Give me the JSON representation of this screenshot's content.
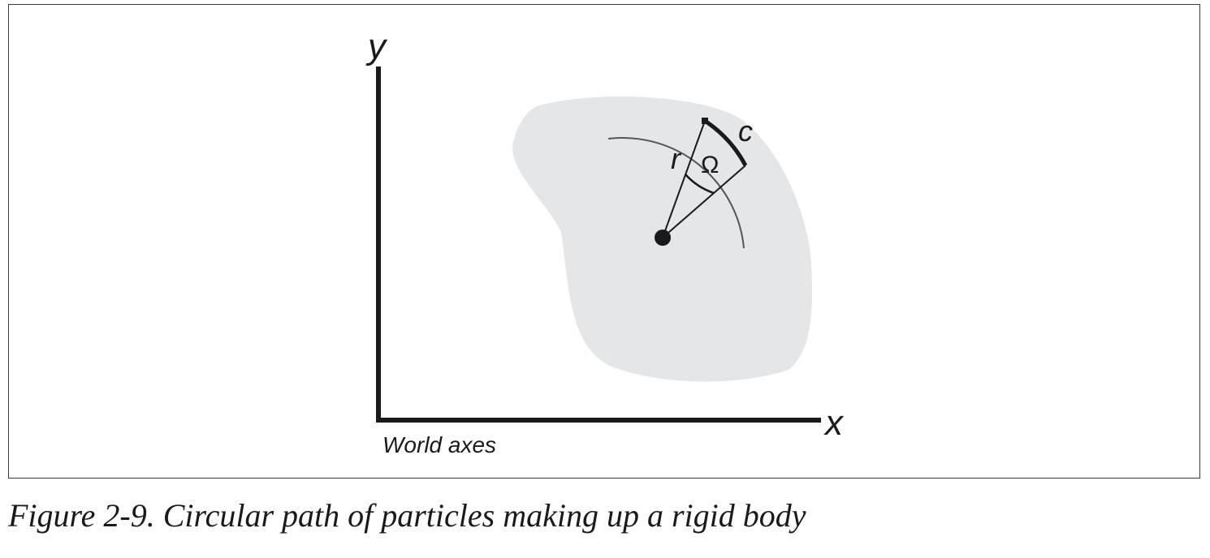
{
  "diagram": {
    "y_axis_label": "y",
    "x_axis_label": "x",
    "world_axes_label": "World axes",
    "radius_label": "r",
    "angle_label": "Ω",
    "arc_label": "c",
    "colors": {
      "body_fill": "#e5e6e7",
      "ink": "#1a1a1a",
      "thin_arc": "#555555"
    }
  },
  "caption": "Figure 2-9. Circular path of particles making up a rigid body"
}
